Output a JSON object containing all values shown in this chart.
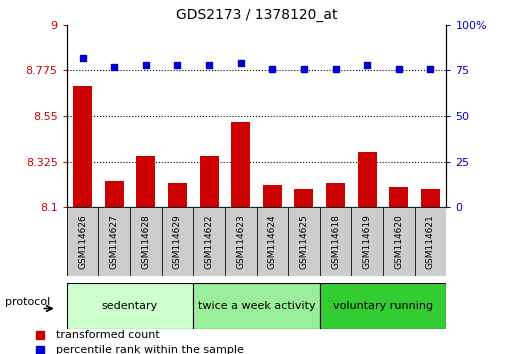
{
  "title": "GDS2173 / 1378120_at",
  "categories": [
    "GSM114626",
    "GSM114627",
    "GSM114628",
    "GSM114629",
    "GSM114622",
    "GSM114623",
    "GSM114624",
    "GSM114625",
    "GSM114618",
    "GSM114619",
    "GSM114620",
    "GSM114621"
  ],
  "bar_values": [
    8.7,
    8.23,
    8.35,
    8.22,
    8.35,
    8.52,
    8.21,
    8.19,
    8.22,
    8.37,
    8.2,
    8.19
  ],
  "scatter_values": [
    82,
    77,
    78,
    78,
    78,
    79,
    76,
    76,
    76,
    78,
    76,
    76
  ],
  "bar_color": "#cc0000",
  "scatter_color": "#0000cc",
  "ylim_left": [
    8.1,
    9.0
  ],
  "ylim_right": [
    0,
    100
  ],
  "yticks_left": [
    8.1,
    8.325,
    8.55,
    8.775,
    9.0
  ],
  "ytick_labels_left": [
    "8.1",
    "8.325",
    "8.55",
    "8.775",
    "9"
  ],
  "yticks_right": [
    0,
    25,
    50,
    75,
    100
  ],
  "ytick_labels_right": [
    "0",
    "25",
    "50",
    "75",
    "100%"
  ],
  "hlines": [
    8.325,
    8.55,
    8.775
  ],
  "groups": [
    {
      "label": "sedentary",
      "start": 0,
      "end": 4,
      "color": "#ccffcc"
    },
    {
      "label": "twice a week activity",
      "start": 4,
      "end": 8,
      "color": "#99ee99"
    },
    {
      "label": "voluntary running",
      "start": 8,
      "end": 12,
      "color": "#33cc33"
    }
  ],
  "tick_box_color": "#cccccc",
  "legend_items": [
    {
      "label": "transformed count",
      "color": "#cc0000",
      "marker": "s"
    },
    {
      "label": "percentile rank within the sample",
      "color": "#0000cc",
      "marker": "s"
    }
  ],
  "protocol_label": "protocol"
}
